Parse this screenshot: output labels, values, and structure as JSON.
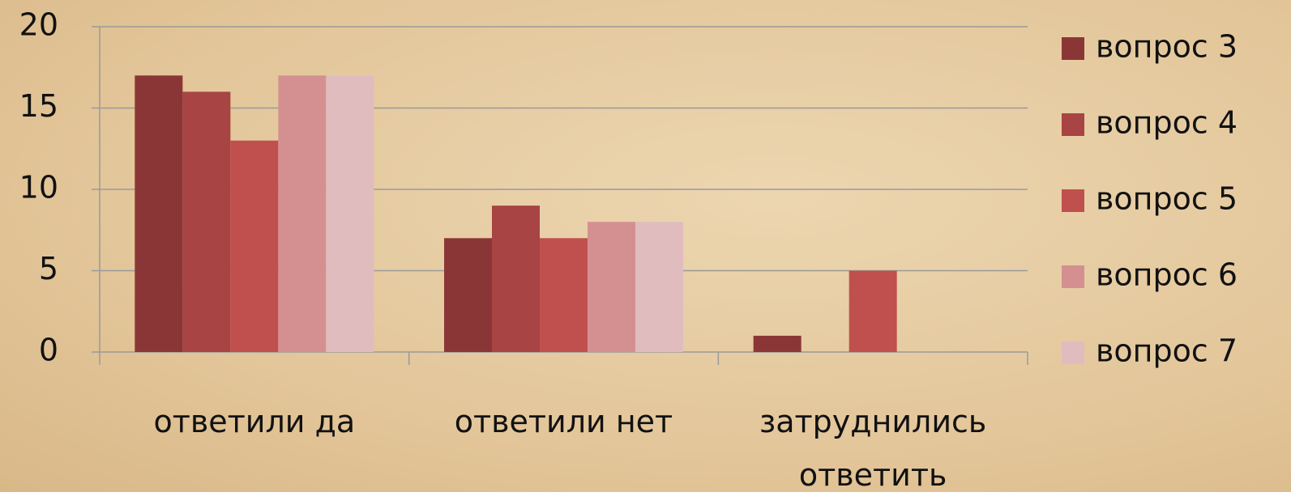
{
  "chart_data": {
    "type": "bar",
    "categories": [
      "ответили да",
      "ответили нет",
      "затруднились ответить"
    ],
    "series": [
      {
        "name": "вопрос 3",
        "color": "#8b3636",
        "values": [
          17,
          7,
          1
        ]
      },
      {
        "name": "вопрос 4",
        "color": "#a84443",
        "values": [
          16,
          9,
          0
        ]
      },
      {
        "name": "вопрос 5",
        "color": "#c0504d",
        "values": [
          13,
          7,
          5
        ]
      },
      {
        "name": "вопрос 6",
        "color": "#d49091",
        "values": [
          17,
          8,
          0
        ]
      },
      {
        "name": "вопрос 7",
        "color": "#e0bcbf",
        "values": [
          17,
          8,
          0
        ]
      }
    ],
    "ylim": [
      0,
      20
    ],
    "yticks": [
      0,
      5,
      10,
      15,
      20
    ],
    "grid": true,
    "legend": "right"
  }
}
